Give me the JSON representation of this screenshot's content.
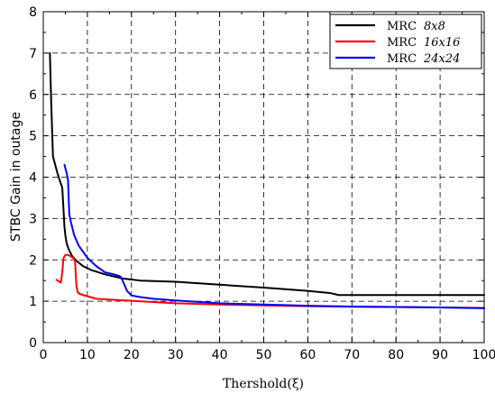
{
  "chart_data": {
    "type": "line",
    "xlabel": "Thershold(ξ)",
    "ylabel": "STBC Gain in outage",
    "xlim": [
      0,
      100
    ],
    "ylim": [
      0,
      8
    ],
    "xticks": [
      0,
      10,
      20,
      30,
      40,
      50,
      60,
      70,
      80,
      90,
      100
    ],
    "yticks": [
      0,
      1,
      2,
      3,
      4,
      5,
      6,
      7,
      8
    ],
    "grid": true,
    "grid_style": "dashed",
    "legend_position": "top-right",
    "series": [
      {
        "name": "MRC",
        "size_label": "8x8",
        "color": "#000000",
        "x": [
          1.5,
          1.8,
          2.2,
          2.7,
          3.2,
          3.8,
          4.3,
          4.6,
          4.8,
          5.0,
          5.3,
          5.8,
          6.5,
          7.5,
          9,
          11,
          14,
          18,
          22,
          30,
          40,
          50,
          60,
          65,
          67,
          68,
          70,
          80,
          90,
          100
        ],
        "y": [
          7.0,
          5.8,
          4.5,
          4.3,
          4.1,
          3.9,
          3.75,
          3.2,
          2.8,
          2.6,
          2.4,
          2.25,
          2.1,
          1.98,
          1.85,
          1.75,
          1.65,
          1.55,
          1.5,
          1.47,
          1.4,
          1.33,
          1.25,
          1.2,
          1.15,
          1.15,
          1.15,
          1.15,
          1.15,
          1.15
        ]
      },
      {
        "name": "MRC",
        "size_label": "16x16",
        "color": "#ff0000",
        "x": [
          3.0,
          3.5,
          4.0,
          4.3,
          4.6,
          5.0,
          5.5,
          6.0,
          6.8,
          7.2,
          7.5,
          7.8,
          8.2,
          9,
          10,
          12,
          15,
          20,
          30,
          40,
          50,
          60,
          70,
          80,
          90,
          100
        ],
        "y": [
          1.52,
          1.48,
          1.45,
          1.7,
          2.05,
          2.12,
          2.12,
          2.1,
          2.05,
          1.98,
          1.4,
          1.22,
          1.18,
          1.15,
          1.12,
          1.06,
          1.04,
          1.01,
          0.95,
          0.92,
          0.9,
          0.88,
          0.87,
          0.86,
          0.85,
          0.84
        ]
      },
      {
        "name": "MRC",
        "size_label": "24x24",
        "color": "#0000ff",
        "x": [
          4.8,
          5.3,
          5.6,
          5.9,
          6.3,
          7.0,
          8.0,
          10,
          12,
          14,
          16,
          17.5,
          18.2,
          19,
          20,
          22,
          25,
          30,
          40,
          50,
          60,
          70,
          80,
          90,
          100
        ],
        "y": [
          4.3,
          4.1,
          3.95,
          3.1,
          2.9,
          2.6,
          2.35,
          2.05,
          1.85,
          1.7,
          1.65,
          1.6,
          1.45,
          1.25,
          1.14,
          1.1,
          1.06,
          1.02,
          0.95,
          0.92,
          0.89,
          0.87,
          0.86,
          0.85,
          0.83
        ]
      }
    ]
  }
}
